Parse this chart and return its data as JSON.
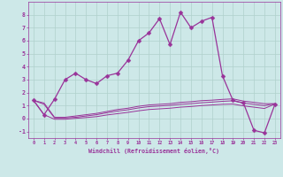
{
  "xlabel": "Windchill (Refroidissement éolien,°C)",
  "background_color": "#cde8e8",
  "grid_color": "#b0d0cc",
  "line_color": "#993399",
  "x": [
    0,
    1,
    2,
    3,
    4,
    5,
    6,
    7,
    8,
    9,
    10,
    11,
    12,
    13,
    14,
    15,
    16,
    17,
    18,
    19,
    20,
    21,
    22,
    23
  ],
  "y_main": [
    1.4,
    0.3,
    1.5,
    3.0,
    3.5,
    3.0,
    2.7,
    3.3,
    3.5,
    4.5,
    6.0,
    6.6,
    7.7,
    5.7,
    8.2,
    7.0,
    7.5,
    7.8,
    3.3,
    1.4,
    1.2,
    -0.9,
    -1.1,
    1.1
  ],
  "y_upper": [
    1.4,
    1.2,
    0.1,
    0.1,
    0.2,
    0.3,
    0.4,
    0.55,
    0.7,
    0.8,
    0.95,
    1.05,
    1.1,
    1.15,
    1.25,
    1.3,
    1.38,
    1.42,
    1.48,
    1.52,
    1.35,
    1.25,
    1.15,
    1.15
  ],
  "y_middle": [
    1.4,
    1.1,
    0.05,
    0.05,
    0.1,
    0.2,
    0.3,
    0.45,
    0.58,
    0.68,
    0.82,
    0.92,
    0.97,
    1.02,
    1.1,
    1.15,
    1.22,
    1.27,
    1.33,
    1.37,
    1.2,
    1.1,
    1.0,
    1.15
  ],
  "y_lower": [
    1.4,
    0.3,
    -0.05,
    -0.05,
    0.02,
    0.08,
    0.15,
    0.28,
    0.38,
    0.48,
    0.6,
    0.7,
    0.75,
    0.8,
    0.88,
    0.93,
    1.0,
    1.05,
    1.1,
    1.12,
    0.98,
    0.88,
    0.78,
    1.12
  ],
  "ylim": [
    -1.5,
    9.0
  ],
  "yticks": [
    -1,
    0,
    1,
    2,
    3,
    4,
    5,
    6,
    7,
    8
  ]
}
